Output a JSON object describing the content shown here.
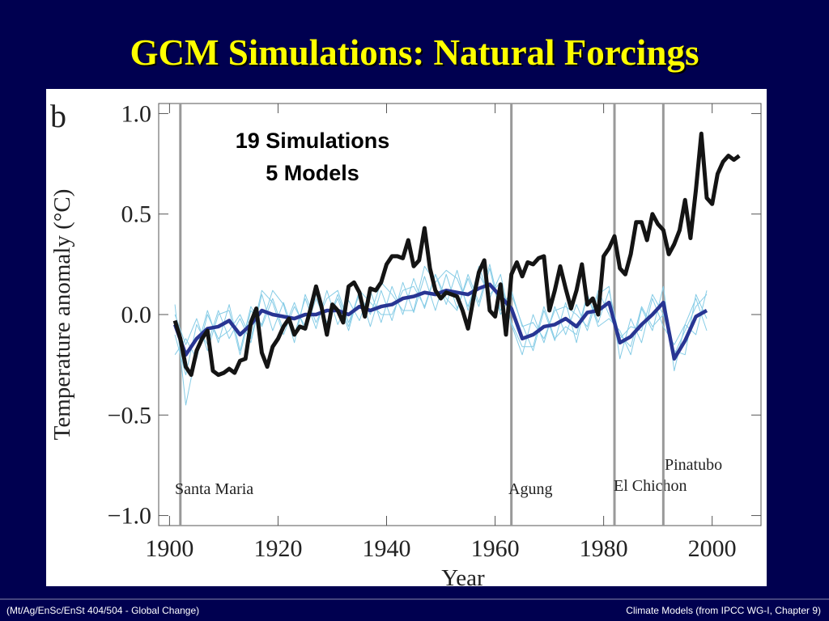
{
  "slide": {
    "title": "GCM Simulations:  Natural Forcings",
    "footer_left": "(Mt/Ag/EnSc/EnSt 404/504 - Global Change)",
    "footer_right": "Climate Models  (from IPCC WG-I, Chapter 9)"
  },
  "chart_data": {
    "type": "line",
    "panel_label": "b",
    "annotation": [
      "19 Simulations",
      "5 Models"
    ],
    "xlabel": "Year",
    "ylabel": "Temperature anomaly (°C)",
    "xlim": [
      1898,
      2009
    ],
    "xticks": [
      1900,
      1920,
      1940,
      1960,
      1980,
      2000
    ],
    "ylim": [
      -1.05,
      1.05
    ],
    "yticks": [
      {
        "value": -1,
        "label": "−1.0"
      },
      {
        "value": -0.5,
        "label": "−0.5"
      },
      {
        "value": 0,
        "label": "0.0"
      },
      {
        "value": 0.5,
        "label": "0.5"
      },
      {
        "value": 1,
        "label": "1.0"
      }
    ],
    "volcanoes": [
      {
        "text": "Santa Maria",
        "x": 1902
      },
      {
        "text": "Agung",
        "x": 1963
      },
      {
        "text": "El Chichon",
        "x": 1982
      },
      {
        "text": "Pinatubo",
        "x": 1991
      }
    ],
    "x": [
      1901,
      1903,
      1905,
      1907,
      1909,
      1911,
      1913,
      1915,
      1917,
      1919,
      1921,
      1923,
      1925,
      1927,
      1929,
      1931,
      1933,
      1935,
      1937,
      1939,
      1941,
      1943,
      1945,
      1947,
      1949,
      1951,
      1953,
      1955,
      1957,
      1959,
      1961,
      1963,
      1965,
      1967,
      1969,
      1971,
      1973,
      1975,
      1977,
      1979,
      1981,
      1983,
      1985,
      1987,
      1989,
      1991,
      1993,
      1995,
      1997,
      1999
    ],
    "series": [
      {
        "color": "#86cce6",
        "width": 1,
        "values": [
          -0.1,
          -0.3,
          -0.05,
          -0.15,
          0.02,
          -0.12,
          -0.02,
          -0.14,
          0.1,
          -0.08,
          0.06,
          -0.1,
          0.08,
          -0.07,
          0.12,
          -0.05,
          0.07,
          -0.03,
          0.12,
          -0.04,
          0.14,
          0.0,
          0.18,
          0.03,
          0.2,
          0.05,
          0.22,
          0.02,
          0.24,
          0.08,
          0.2,
          -0.05,
          -0.2,
          0.0,
          -0.14,
          0.04,
          -0.1,
          0.05,
          -0.08,
          0.1,
          0.14,
          -0.22,
          -0.02,
          -0.14,
          0.08,
          -0.06,
          -0.15,
          -0.05,
          0.08,
          -0.08
        ]
      },
      {
        "color": "#86cce6",
        "width": 1,
        "values": [
          0.05,
          -0.45,
          -0.18,
          0.02,
          -0.14,
          0.05,
          -0.18,
          0.04,
          -0.06,
          0.08,
          -0.08,
          0.06,
          -0.08,
          0.08,
          -0.05,
          0.1,
          -0.06,
          0.12,
          -0.06,
          0.12,
          -0.03,
          0.16,
          0.01,
          0.19,
          0.02,
          0.2,
          0.03,
          0.18,
          0.04,
          0.23,
          0.0,
          0.1,
          -0.05,
          -0.18,
          0.02,
          -0.13,
          0.06,
          -0.14,
          0.1,
          -0.06,
          -0.02,
          -0.08,
          -0.2,
          0.03,
          -0.08,
          0.14,
          -0.28,
          -0.05,
          -0.1,
          0.12
        ]
      },
      {
        "color": "#86cce6",
        "width": 1,
        "values": [
          -0.2,
          -0.12,
          -0.22,
          0.0,
          -0.12,
          -0.08,
          0.0,
          -0.12,
          0.12,
          0.06,
          -0.1,
          0.04,
          -0.06,
          0.1,
          -0.04,
          0.08,
          -0.08,
          0.12,
          0.06,
          0.0,
          0.0,
          0.12,
          0.14,
          0.04,
          0.2,
          0.08,
          0.02,
          0.2,
          0.06,
          0.25,
          0.02,
          0.12,
          -0.06,
          -0.04,
          -0.12,
          0.02,
          0.04,
          0.0,
          -0.06,
          0.12,
          0.0,
          -0.1,
          -0.16,
          0.04,
          -0.06,
          0.0,
          -0.18,
          -0.2,
          0.1,
          -0.02
        ]
      },
      {
        "color": "#86cce6",
        "width": 1,
        "values": [
          0.0,
          -0.15,
          -0.02,
          -0.18,
          0.0,
          0.02,
          -0.2,
          0.02,
          -0.05,
          0.12,
          0.05,
          -0.14,
          0.1,
          -0.04,
          0.08,
          0.12,
          -0.04,
          0.1,
          0.0,
          0.16,
          0.1,
          0.02,
          0.02,
          0.24,
          0.16,
          0.22,
          0.18,
          0.04,
          0.2,
          0.1,
          0.16,
          -0.04,
          -0.16,
          -0.16,
          0.04,
          -0.12,
          -0.06,
          -0.1,
          0.1,
          -0.04,
          0.12,
          -0.12,
          -0.06,
          -0.08,
          0.1,
          0.0,
          -0.2,
          -0.08,
          0.04,
          0.1
        ]
      },
      {
        "color": "#283593",
        "width": 4.5,
        "values": [
          -0.05,
          -0.2,
          -0.12,
          -0.07,
          -0.06,
          -0.03,
          -0.1,
          -0.05,
          0.02,
          0.0,
          -0.01,
          -0.02,
          0.0,
          0.0,
          0.02,
          0.02,
          0.0,
          0.04,
          0.02,
          0.04,
          0.05,
          0.08,
          0.09,
          0.11,
          0.1,
          0.12,
          0.11,
          0.1,
          0.13,
          0.15,
          0.09,
          0.03,
          -0.12,
          -0.1,
          -0.06,
          -0.05,
          -0.02,
          -0.06,
          0.01,
          0.02,
          0.06,
          -0.14,
          -0.11,
          -0.05,
          0.0,
          0.06,
          -0.22,
          -0.13,
          -0.01,
          0.02
        ]
      },
      {
        "color": "#141414",
        "width": 5,
        "x": [
          1901,
          1902,
          1903,
          1904,
          1905,
          1906,
          1907,
          1908,
          1909,
          1910,
          1911,
          1912,
          1913,
          1914,
          1915,
          1916,
          1917,
          1918,
          1919,
          1920,
          1921,
          1922,
          1923,
          1924,
          1925,
          1926,
          1927,
          1928,
          1929,
          1930,
          1931,
          1932,
          1933,
          1934,
          1935,
          1936,
          1937,
          1938,
          1939,
          1940,
          1941,
          1942,
          1943,
          1944,
          1945,
          1946,
          1947,
          1948,
          1949,
          1950,
          1951,
          1952,
          1953,
          1954,
          1955,
          1956,
          1957,
          1958,
          1959,
          1960,
          1961,
          1962,
          1963,
          1964,
          1965,
          1966,
          1967,
          1968,
          1969,
          1970,
          1971,
          1972,
          1973,
          1974,
          1975,
          1976,
          1977,
          1978,
          1979,
          1980,
          1981,
          1982,
          1983,
          1984,
          1985,
          1986,
          1987,
          1988,
          1989,
          1990,
          1991,
          1992,
          1993,
          1994,
          1995,
          1996,
          1997,
          1998,
          1999,
          2000,
          2001,
          2002,
          2003,
          2004,
          2005
        ],
        "values": [
          -0.03,
          -0.12,
          -0.26,
          -0.3,
          -0.18,
          -0.12,
          -0.08,
          -0.28,
          -0.3,
          -0.29,
          -0.27,
          -0.29,
          -0.23,
          -0.22,
          -0.04,
          0.03,
          -0.19,
          -0.26,
          -0.16,
          -0.12,
          -0.06,
          -0.02,
          -0.1,
          -0.06,
          -0.07,
          0.03,
          0.14,
          0.04,
          -0.1,
          0.05,
          0.02,
          -0.04,
          0.14,
          0.16,
          0.11,
          -0.01,
          0.13,
          0.12,
          0.16,
          0.25,
          0.29,
          0.29,
          0.28,
          0.37,
          0.24,
          0.27,
          0.43,
          0.23,
          0.12,
          0.08,
          0.11,
          0.1,
          0.09,
          0.02,
          -0.07,
          0.08,
          0.21,
          0.27,
          0.02,
          -0.01,
          0.15,
          -0.1,
          0.2,
          0.26,
          0.19,
          0.26,
          0.25,
          0.28,
          0.29,
          0.02,
          0.12,
          0.24,
          0.13,
          0.03,
          0.12,
          0.25,
          0.05,
          0.08,
          0.0,
          0.29,
          0.33,
          0.39,
          0.23,
          0.2,
          0.3,
          0.46,
          0.46,
          0.37,
          0.5,
          0.45,
          0.42,
          0.3,
          0.35,
          0.42,
          0.57,
          0.38,
          0.62,
          0.9,
          0.58,
          0.55,
          0.7,
          0.76,
          0.79,
          0.77,
          0.79
        ]
      }
    ]
  }
}
